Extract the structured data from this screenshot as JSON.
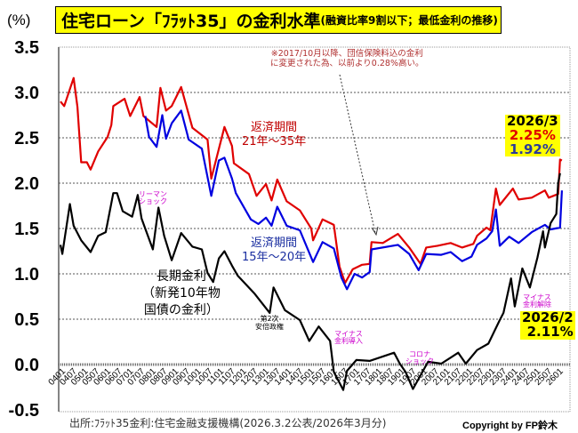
{
  "header": {
    "unit_label": "(%)",
    "title_main": "住宅ローン「ﾌﾗｯﾄ35」の金利水準",
    "title_sub": "(融資比率9割以下；最低金利の推移)"
  },
  "footer": {
    "source": "出所:ﾌﾗｯﾄ35金利:住宅金融支援機構(2026.3.2公表/2026年3月分)",
    "copyright": "Copyright by FP鈴木"
  },
  "annotations": {
    "note_line1": "※2017/10月以降、団信保険料込の金利",
    "note_line2": "に変更された為、以前より0.28%高い。",
    "red_label_1": "返済期間",
    "red_label_2": "21年～35年",
    "blue_label_1": "返済期間",
    "blue_label_2": "15年～20年",
    "black_label_1": "長期金利",
    "black_label_2": "（新発10年物",
    "black_label_3": "国債の金利）",
    "lehman_1": "リーマン",
    "lehman_2": "ショック",
    "abe_1": "第2次",
    "abe_2": "安倍政権",
    "negative_intro_1": "マイナス",
    "negative_intro_2": "金利導入",
    "corona_1": "コロナ",
    "corona_2": "ショック",
    "negative_end_1": "マイナス",
    "negative_end_2": "金利解除",
    "latest_flat_date": "2026/3",
    "latest_red": "2.25%",
    "latest_blue": "1.92%",
    "latest_jgb_date": "2026/2",
    "latest_jgb": "2.11%"
  },
  "chart_data": {
    "type": "line",
    "title": "住宅ローン「ﾌﾗｯﾄ35」の金利水準(融資比率9割以下；最低金利の推移)",
    "ylabel": "(%)",
    "ylim": [
      -0.5,
      3.5
    ],
    "yticks": [
      "3.5",
      "3.0",
      "2.5",
      "2.0",
      "1.5",
      "1.0",
      "0.5",
      "0.0",
      "-0.5"
    ],
    "ytick_values": [
      3.5,
      3.0,
      2.5,
      2.0,
      1.5,
      1.0,
      0.5,
      0.0,
      -0.5
    ],
    "xlim": [
      "2004-01",
      "2026-03"
    ],
    "xticks": [
      "0401",
      "0407",
      "0501",
      "0507",
      "0601",
      "0607",
      "0701",
      "0707",
      "0801",
      "0807",
      "0901",
      "0907",
      "1001",
      "1007",
      "1101",
      "1107",
      "1201",
      "1207",
      "1301",
      "1307",
      "1401",
      "1407",
      "1501",
      "1507",
      "1601",
      "1607",
      "1701",
      "1707",
      "1801",
      "1807",
      "1901",
      "1907",
      "2001",
      "2007",
      "2101",
      "2107",
      "2201",
      "2207",
      "2301",
      "2307",
      "2401",
      "2407",
      "2501",
      "2507",
      "2601"
    ],
    "grid": true,
    "colors": {
      "red": "#e00000",
      "blue": "#0000e0",
      "black": "#000000",
      "highlight": "#ffff00",
      "annotation": "#cc00cc"
    },
    "series": [
      {
        "name": "返済期間 21年～35年",
        "color": "#e00000",
        "points": [
          [
            "2004-01",
            2.9
          ],
          [
            "2004-03",
            2.85
          ],
          [
            "2004-08",
            3.16
          ],
          [
            "2004-10",
            2.84
          ],
          [
            "2004-12",
            2.23
          ],
          [
            "2005-03",
            2.23
          ],
          [
            "2005-05",
            2.15
          ],
          [
            "2005-09",
            2.35
          ],
          [
            "2006-02",
            2.51
          ],
          [
            "2006-04",
            2.64
          ],
          [
            "2006-05",
            2.85
          ],
          [
            "2006-11",
            2.93
          ],
          [
            "2007-02",
            2.74
          ],
          [
            "2007-07",
            2.95
          ],
          [
            "2007-09",
            2.74
          ],
          [
            "2008-04",
            2.62
          ],
          [
            "2008-06",
            3.05
          ],
          [
            "2008-09",
            2.8
          ],
          [
            "2008-12",
            2.85
          ],
          [
            "2009-05",
            3.06
          ],
          [
            "2009-11",
            2.61
          ],
          [
            "2010-07",
            2.48
          ],
          [
            "2010-09",
            2.05
          ],
          [
            "2011-04",
            2.62
          ],
          [
            "2011-08",
            2.41
          ],
          [
            "2011-09",
            2.22
          ],
          [
            "2012-05",
            2.1
          ],
          [
            "2012-09",
            1.86
          ],
          [
            "2013-02",
            1.99
          ],
          [
            "2013-05",
            1.81
          ],
          [
            "2013-08",
            2.04
          ],
          [
            "2014-01",
            1.8
          ],
          [
            "2014-08",
            1.7
          ],
          [
            "2015-02",
            1.5
          ],
          [
            "2015-03",
            1.37
          ],
          [
            "2015-08",
            1.6
          ],
          [
            "2016-02",
            1.54
          ],
          [
            "2016-05",
            1.08
          ],
          [
            "2016-08",
            0.9
          ],
          [
            "2016-12",
            1.05
          ],
          [
            "2017-05",
            1.1
          ],
          [
            "2017-09",
            1.11
          ],
          [
            "2017-10",
            1.35
          ],
          [
            "2018-04",
            1.34
          ],
          [
            "2018-12",
            1.44
          ],
          [
            "2019-06",
            1.29
          ],
          [
            "2019-12",
            1.11
          ],
          [
            "2020-03",
            1.29
          ],
          [
            "2020-09",
            1.31
          ],
          [
            "2021-04",
            1.34
          ],
          [
            "2021-10",
            1.29
          ],
          [
            "2022-04",
            1.33
          ],
          [
            "2022-06",
            1.42
          ],
          [
            "2022-11",
            1.51
          ],
          [
            "2023-01",
            1.48
          ],
          [
            "2023-04",
            1.94
          ],
          [
            "2023-06",
            1.76
          ],
          [
            "2024-01",
            1.94
          ],
          [
            "2024-04",
            1.82
          ],
          [
            "2024-11",
            1.84
          ],
          [
            "2025-06",
            1.92
          ],
          [
            "2025-08",
            1.84
          ],
          [
            "2026-01",
            1.88
          ],
          [
            "2026-02",
            2.26
          ],
          [
            "2026-03",
            2.25
          ]
        ]
      },
      {
        "name": "返済期間 15年～20年",
        "color": "#0000e0",
        "points": [
          [
            "2007-10",
            2.74
          ],
          [
            "2007-12",
            2.51
          ],
          [
            "2008-04",
            2.4
          ],
          [
            "2008-07",
            2.75
          ],
          [
            "2008-09",
            2.49
          ],
          [
            "2008-12",
            2.66
          ],
          [
            "2009-05",
            2.8
          ],
          [
            "2009-09",
            2.48
          ],
          [
            "2010-04",
            2.38
          ],
          [
            "2010-09",
            1.86
          ],
          [
            "2011-01",
            2.25
          ],
          [
            "2011-04",
            2.28
          ],
          [
            "2011-08",
            2.05
          ],
          [
            "2011-10",
            1.89
          ],
          [
            "2012-06",
            1.6
          ],
          [
            "2012-10",
            1.55
          ],
          [
            "2013-02",
            1.62
          ],
          [
            "2013-05",
            1.53
          ],
          [
            "2013-08",
            1.74
          ],
          [
            "2014-01",
            1.53
          ],
          [
            "2014-08",
            1.48
          ],
          [
            "2015-03",
            1.13
          ],
          [
            "2015-08",
            1.35
          ],
          [
            "2016-02",
            1.28
          ],
          [
            "2016-06",
            0.96
          ],
          [
            "2016-09",
            0.83
          ],
          [
            "2017-01",
            1.0
          ],
          [
            "2017-05",
            0.96
          ],
          [
            "2017-09",
            1.02
          ],
          [
            "2017-10",
            1.27
          ],
          [
            "2018-12",
            1.32
          ],
          [
            "2019-06",
            1.22
          ],
          [
            "2019-11",
            1.04
          ],
          [
            "2020-03",
            1.22
          ],
          [
            "2020-11",
            1.21
          ],
          [
            "2021-04",
            1.24
          ],
          [
            "2021-10",
            1.14
          ],
          [
            "2022-03",
            1.19
          ],
          [
            "2022-06",
            1.32
          ],
          [
            "2022-11",
            1.39
          ],
          [
            "2023-02",
            1.47
          ],
          [
            "2023-04",
            1.71
          ],
          [
            "2023-06",
            1.31
          ],
          [
            "2023-11",
            1.41
          ],
          [
            "2024-04",
            1.34
          ],
          [
            "2024-11",
            1.46
          ],
          [
            "2025-06",
            1.54
          ],
          [
            "2025-09",
            1.49
          ],
          [
            "2026-02",
            1.51
          ],
          [
            "2026-03",
            1.92
          ]
        ]
      },
      {
        "name": "長期金利（新発10年物国債の金利）",
        "color": "#000000",
        "points": [
          [
            "2004-01",
            1.32
          ],
          [
            "2004-02",
            1.22
          ],
          [
            "2004-04",
            1.5
          ],
          [
            "2004-06",
            1.77
          ],
          [
            "2004-08",
            1.53
          ],
          [
            "2004-12",
            1.37
          ],
          [
            "2005-05",
            1.24
          ],
          [
            "2005-09",
            1.42
          ],
          [
            "2006-01",
            1.46
          ],
          [
            "2006-05",
            1.89
          ],
          [
            "2006-07",
            1.89
          ],
          [
            "2006-10",
            1.69
          ],
          [
            "2007-03",
            1.63
          ],
          [
            "2007-06",
            1.87
          ],
          [
            "2007-08",
            1.61
          ],
          [
            "2008-02",
            1.27
          ],
          [
            "2008-05",
            1.73
          ],
          [
            "2008-08",
            1.42
          ],
          [
            "2008-12",
            1.15
          ],
          [
            "2009-05",
            1.45
          ],
          [
            "2009-11",
            1.3
          ],
          [
            "2010-04",
            1.27
          ],
          [
            "2010-07",
            1.01
          ],
          [
            "2010-10",
            0.91
          ],
          [
            "2011-01",
            1.17
          ],
          [
            "2011-04",
            1.25
          ],
          [
            "2011-08",
            1.09
          ],
          [
            "2011-11",
            0.98
          ],
          [
            "2012-08",
            0.78
          ],
          [
            "2013-04",
            0.57
          ],
          [
            "2013-06",
            0.85
          ],
          [
            "2013-12",
            0.6
          ],
          [
            "2014-08",
            0.49
          ],
          [
            "2015-01",
            0.26
          ],
          [
            "2015-06",
            0.42
          ],
          [
            "2015-12",
            0.26
          ],
          [
            "2016-02",
            -0.08
          ],
          [
            "2016-07",
            -0.28
          ],
          [
            "2016-09",
            -0.07
          ],
          [
            "2017-02",
            0.05
          ],
          [
            "2017-09",
            0.04
          ],
          [
            "2018-10",
            0.13
          ],
          [
            "2019-01",
            0.01
          ],
          [
            "2019-04",
            -0.08
          ],
          [
            "2019-08",
            -0.27
          ],
          [
            "2020-04",
            0.03
          ],
          [
            "2020-11",
            0.01
          ],
          [
            "2021-08",
            0.13
          ],
          [
            "2021-12",
            0.01
          ],
          [
            "2022-06",
            0.16
          ],
          [
            "2022-12",
            0.23
          ],
          [
            "2023-06",
            0.49
          ],
          [
            "2023-08",
            0.57
          ],
          [
            "2023-12",
            0.95
          ],
          [
            "2024-02",
            0.64
          ],
          [
            "2024-06",
            1.06
          ],
          [
            "2024-10",
            0.85
          ],
          [
            "2025-02",
            1.18
          ],
          [
            "2025-05",
            1.47
          ],
          [
            "2025-06",
            1.29
          ],
          [
            "2025-09",
            1.56
          ],
          [
            "2025-12",
            1.66
          ],
          [
            "2026-01",
            2.0
          ],
          [
            "2026-02",
            2.11
          ]
        ]
      }
    ]
  }
}
